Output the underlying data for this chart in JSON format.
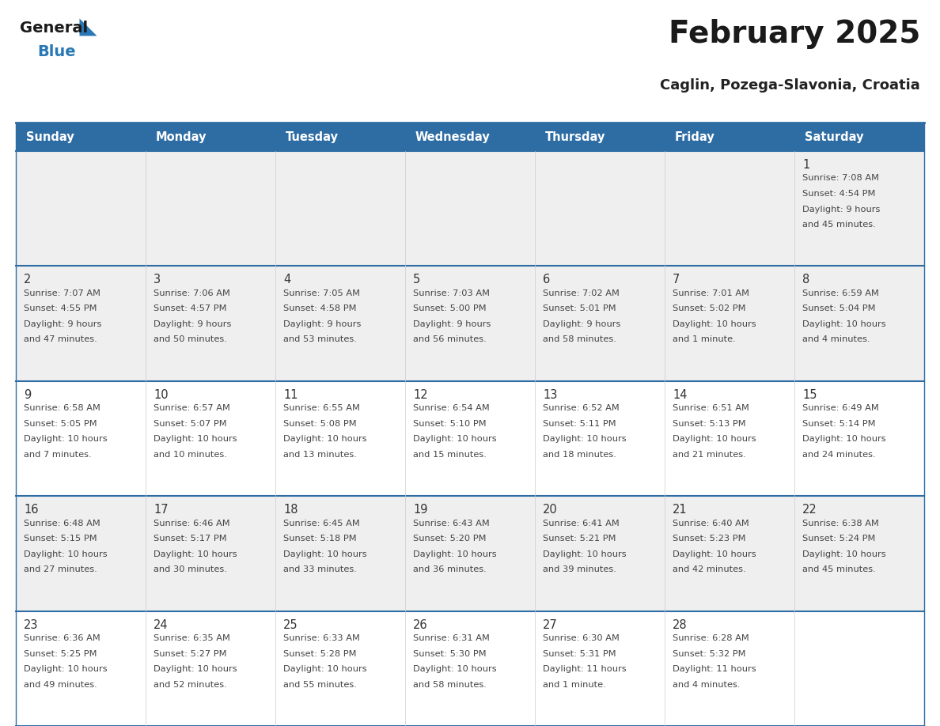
{
  "title": "February 2025",
  "subtitle": "Caglin, Pozega-Slavonia, Croatia",
  "days_of_week": [
    "Sunday",
    "Monday",
    "Tuesday",
    "Wednesday",
    "Thursday",
    "Friday",
    "Saturday"
  ],
  "header_bg": "#2E6DA4",
  "header_text": "#FFFFFF",
  "row_bg_gray": "#EFEFEF",
  "row_bg_white": "#FFFFFF",
  "cell_border_color": "#CCCCCC",
  "row_separator_color": "#2E6DA4",
  "day_number_color": "#333333",
  "text_color": "#444444",
  "title_color": "#1a1a1a",
  "subtitle_color": "#222222",
  "logo_general_color": "#1a1a1a",
  "logo_blue_color": "#2878B5",
  "calendar_data": [
    {
      "day": 1,
      "col": 6,
      "row": 0,
      "sunrise": "7:08 AM",
      "sunset": "4:54 PM",
      "daylight_line1": "Daylight: 9 hours",
      "daylight_line2": "and 45 minutes."
    },
    {
      "day": 2,
      "col": 0,
      "row": 1,
      "sunrise": "7:07 AM",
      "sunset": "4:55 PM",
      "daylight_line1": "Daylight: 9 hours",
      "daylight_line2": "and 47 minutes."
    },
    {
      "day": 3,
      "col": 1,
      "row": 1,
      "sunrise": "7:06 AM",
      "sunset": "4:57 PM",
      "daylight_line1": "Daylight: 9 hours",
      "daylight_line2": "and 50 minutes."
    },
    {
      "day": 4,
      "col": 2,
      "row": 1,
      "sunrise": "7:05 AM",
      "sunset": "4:58 PM",
      "daylight_line1": "Daylight: 9 hours",
      "daylight_line2": "and 53 minutes."
    },
    {
      "day": 5,
      "col": 3,
      "row": 1,
      "sunrise": "7:03 AM",
      "sunset": "5:00 PM",
      "daylight_line1": "Daylight: 9 hours",
      "daylight_line2": "and 56 minutes."
    },
    {
      "day": 6,
      "col": 4,
      "row": 1,
      "sunrise": "7:02 AM",
      "sunset": "5:01 PM",
      "daylight_line1": "Daylight: 9 hours",
      "daylight_line2": "and 58 minutes."
    },
    {
      "day": 7,
      "col": 5,
      "row": 1,
      "sunrise": "7:01 AM",
      "sunset": "5:02 PM",
      "daylight_line1": "Daylight: 10 hours",
      "daylight_line2": "and 1 minute."
    },
    {
      "day": 8,
      "col": 6,
      "row": 1,
      "sunrise": "6:59 AM",
      "sunset": "5:04 PM",
      "daylight_line1": "Daylight: 10 hours",
      "daylight_line2": "and 4 minutes."
    },
    {
      "day": 9,
      "col": 0,
      "row": 2,
      "sunrise": "6:58 AM",
      "sunset": "5:05 PM",
      "daylight_line1": "Daylight: 10 hours",
      "daylight_line2": "and 7 minutes."
    },
    {
      "day": 10,
      "col": 1,
      "row": 2,
      "sunrise": "6:57 AM",
      "sunset": "5:07 PM",
      "daylight_line1": "Daylight: 10 hours",
      "daylight_line2": "and 10 minutes."
    },
    {
      "day": 11,
      "col": 2,
      "row": 2,
      "sunrise": "6:55 AM",
      "sunset": "5:08 PM",
      "daylight_line1": "Daylight: 10 hours",
      "daylight_line2": "and 13 minutes."
    },
    {
      "day": 12,
      "col": 3,
      "row": 2,
      "sunrise": "6:54 AM",
      "sunset": "5:10 PM",
      "daylight_line1": "Daylight: 10 hours",
      "daylight_line2": "and 15 minutes."
    },
    {
      "day": 13,
      "col": 4,
      "row": 2,
      "sunrise": "6:52 AM",
      "sunset": "5:11 PM",
      "daylight_line1": "Daylight: 10 hours",
      "daylight_line2": "and 18 minutes."
    },
    {
      "day": 14,
      "col": 5,
      "row": 2,
      "sunrise": "6:51 AM",
      "sunset": "5:13 PM",
      "daylight_line1": "Daylight: 10 hours",
      "daylight_line2": "and 21 minutes."
    },
    {
      "day": 15,
      "col": 6,
      "row": 2,
      "sunrise": "6:49 AM",
      "sunset": "5:14 PM",
      "daylight_line1": "Daylight: 10 hours",
      "daylight_line2": "and 24 minutes."
    },
    {
      "day": 16,
      "col": 0,
      "row": 3,
      "sunrise": "6:48 AM",
      "sunset": "5:15 PM",
      "daylight_line1": "Daylight: 10 hours",
      "daylight_line2": "and 27 minutes."
    },
    {
      "day": 17,
      "col": 1,
      "row": 3,
      "sunrise": "6:46 AM",
      "sunset": "5:17 PM",
      "daylight_line1": "Daylight: 10 hours",
      "daylight_line2": "and 30 minutes."
    },
    {
      "day": 18,
      "col": 2,
      "row": 3,
      "sunrise": "6:45 AM",
      "sunset": "5:18 PM",
      "daylight_line1": "Daylight: 10 hours",
      "daylight_line2": "and 33 minutes."
    },
    {
      "day": 19,
      "col": 3,
      "row": 3,
      "sunrise": "6:43 AM",
      "sunset": "5:20 PM",
      "daylight_line1": "Daylight: 10 hours",
      "daylight_line2": "and 36 minutes."
    },
    {
      "day": 20,
      "col": 4,
      "row": 3,
      "sunrise": "6:41 AM",
      "sunset": "5:21 PM",
      "daylight_line1": "Daylight: 10 hours",
      "daylight_line2": "and 39 minutes."
    },
    {
      "day": 21,
      "col": 5,
      "row": 3,
      "sunrise": "6:40 AM",
      "sunset": "5:23 PM",
      "daylight_line1": "Daylight: 10 hours",
      "daylight_line2": "and 42 minutes."
    },
    {
      "day": 22,
      "col": 6,
      "row": 3,
      "sunrise": "6:38 AM",
      "sunset": "5:24 PM",
      "daylight_line1": "Daylight: 10 hours",
      "daylight_line2": "and 45 minutes."
    },
    {
      "day": 23,
      "col": 0,
      "row": 4,
      "sunrise": "6:36 AM",
      "sunset": "5:25 PM",
      "daylight_line1": "Daylight: 10 hours",
      "daylight_line2": "and 49 minutes."
    },
    {
      "day": 24,
      "col": 1,
      "row": 4,
      "sunrise": "6:35 AM",
      "sunset": "5:27 PM",
      "daylight_line1": "Daylight: 10 hours",
      "daylight_line2": "and 52 minutes."
    },
    {
      "day": 25,
      "col": 2,
      "row": 4,
      "sunrise": "6:33 AM",
      "sunset": "5:28 PM",
      "daylight_line1": "Daylight: 10 hours",
      "daylight_line2": "and 55 minutes."
    },
    {
      "day": 26,
      "col": 3,
      "row": 4,
      "sunrise": "6:31 AM",
      "sunset": "5:30 PM",
      "daylight_line1": "Daylight: 10 hours",
      "daylight_line2": "and 58 minutes."
    },
    {
      "day": 27,
      "col": 4,
      "row": 4,
      "sunrise": "6:30 AM",
      "sunset": "5:31 PM",
      "daylight_line1": "Daylight: 11 hours",
      "daylight_line2": "and 1 minute."
    },
    {
      "day": 28,
      "col": 5,
      "row": 4,
      "sunrise": "6:28 AM",
      "sunset": "5:32 PM",
      "daylight_line1": "Daylight: 11 hours",
      "daylight_line2": "and 4 minutes."
    }
  ],
  "row_bg_pattern": [
    "gray",
    "gray",
    "white",
    "gray",
    "white"
  ]
}
